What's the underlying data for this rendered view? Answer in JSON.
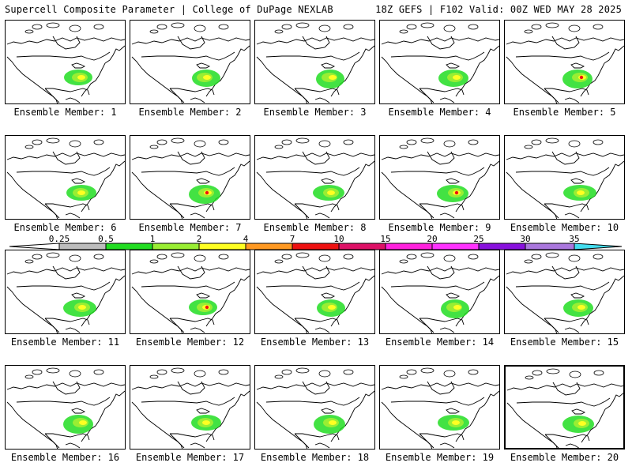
{
  "header": {
    "title_left": "Supercell Composite Parameter | College of DuPage NEXLAB",
    "title_right": "18Z GEFS | F102 Valid: 00Z WED MAY 28 2025"
  },
  "legend": {
    "tick_labels": [
      "0.25",
      "0.5",
      "1",
      "2",
      "4",
      "7",
      "10",
      "15",
      "20",
      "25",
      "30",
      "35"
    ],
    "colors": [
      "#ffffff",
      "#bdbdbd",
      "#22dd22",
      "#99ee33",
      "#ffff22",
      "#ff9922",
      "#ee1111",
      "#dd1166",
      "#ff22dd",
      "#ff33ff",
      "#8811dd",
      "#aa77dd",
      "#44ddee"
    ]
  },
  "panels": [
    {
      "label": "Ensemble Member: 1",
      "selected": false
    },
    {
      "label": "Ensemble Member: 2",
      "selected": false
    },
    {
      "label": "Ensemble Member: 3",
      "selected": false
    },
    {
      "label": "Ensemble Member: 4",
      "selected": false
    },
    {
      "label": "Ensemble Member: 5",
      "selected": false
    },
    {
      "label": "Ensemble Member: 6",
      "selected": false
    },
    {
      "label": "Ensemble Member: 7",
      "selected": false
    },
    {
      "label": "Ensemble Member: 8",
      "selected": false
    },
    {
      "label": "Ensemble Member: 9",
      "selected": false
    },
    {
      "label": "Ensemble Member: 10",
      "selected": false
    },
    {
      "label": "Ensemble Member: 11",
      "selected": false
    },
    {
      "label": "Ensemble Member: 12",
      "selected": false
    },
    {
      "label": "Ensemble Member: 13",
      "selected": false
    },
    {
      "label": "Ensemble Member: 14",
      "selected": false
    },
    {
      "label": "Ensemble Member: 15",
      "selected": false
    },
    {
      "label": "Ensemble Member: 16",
      "selected": false
    },
    {
      "label": "Ensemble Member: 17",
      "selected": false
    },
    {
      "label": "Ensemble Member: 18",
      "selected": false
    },
    {
      "label": "Ensemble Member: 19",
      "selected": false
    },
    {
      "label": "Ensemble Member: 20",
      "selected": true
    }
  ]
}
